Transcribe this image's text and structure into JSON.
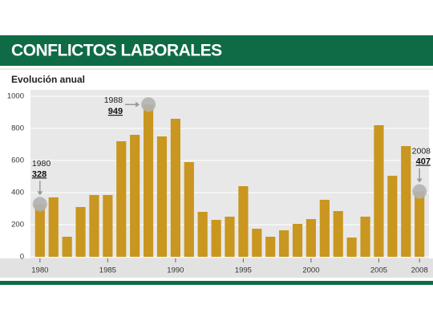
{
  "chart_data": {
    "type": "bar",
    "title": "CONFLICTOS LABORALES",
    "subtitle": "Evolución anual",
    "x": [
      1980,
      1981,
      1982,
      1983,
      1984,
      1985,
      1986,
      1987,
      1988,
      1989,
      1990,
      1991,
      1992,
      1993,
      1994,
      1995,
      1996,
      1997,
      1998,
      1999,
      2000,
      2001,
      2002,
      2003,
      2004,
      2005,
      2006,
      2007,
      2008
    ],
    "values": [
      328,
      370,
      125,
      310,
      385,
      385,
      720,
      760,
      949,
      750,
      860,
      590,
      280,
      230,
      250,
      440,
      175,
      125,
      165,
      205,
      235,
      355,
      285,
      120,
      250,
      820,
      505,
      690,
      407
    ],
    "color": "#c9961f",
    "highlight_color": "#b3b3b3",
    "highlighted_x": [
      1980,
      1988,
      2008
    ],
    "xlim": [
      1979.3,
      2008.7
    ],
    "xticks": [
      1980,
      1985,
      1990,
      1995,
      2000,
      2005,
      2008
    ],
    "ylim": [
      0,
      1000
    ],
    "yticks": [
      0,
      200,
      400,
      600,
      800,
      1000
    ],
    "grid": true
  }
}
